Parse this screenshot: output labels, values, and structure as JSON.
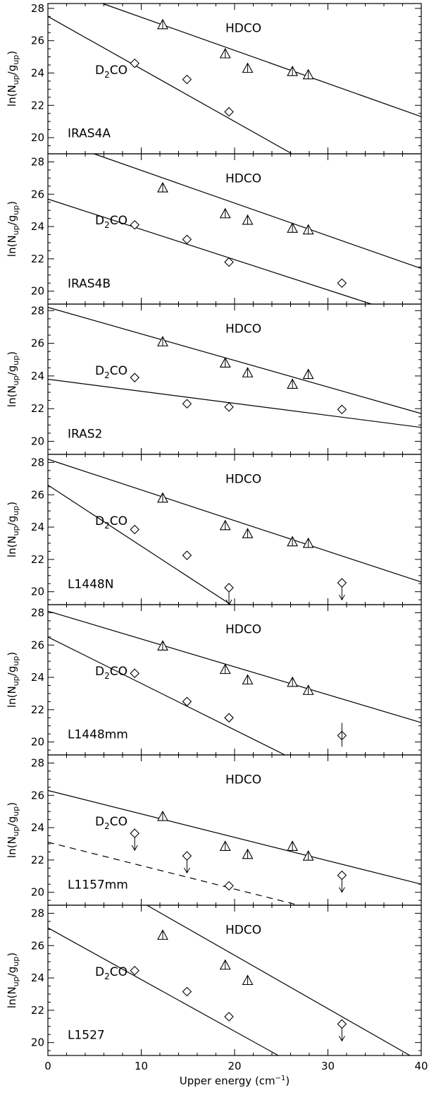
{
  "chart_data": {
    "type": "scatter",
    "xlabel": "Upper energy (cm⁻¹)",
    "ylabel": "ln(N_up/g_up)",
    "xlim": [
      0,
      40
    ],
    "xticks": [
      0,
      10,
      20,
      30,
      40
    ],
    "panels": [
      {
        "source": "IRAS4A",
        "ylim": [
          19,
          28.3
        ],
        "yticks": [
          20,
          22,
          24,
          26,
          28
        ],
        "hdco": {
          "label": "HDCO",
          "points": [
            [
              12.3,
              27.0
            ],
            [
              19.0,
              25.2
            ],
            [
              21.4,
              24.3
            ],
            [
              26.2,
              24.1
            ],
            [
              27.9,
              23.9
            ]
          ],
          "fit": [
            [
              0,
              29.5
            ],
            [
              40,
              21.3
            ]
          ],
          "fit_style": "solid"
        },
        "d2co": {
          "label": "D2CO",
          "points": [
            [
              9.3,
              24.6
            ],
            [
              14.9,
              23.6
            ],
            [
              19.4,
              21.6
            ]
          ],
          "fit": [
            [
              0,
              27.5
            ],
            [
              40,
              14.5
            ]
          ],
          "fit_style": "solid"
        },
        "upper_limits": []
      },
      {
        "source": "IRAS4B",
        "ylim": [
          19.2,
          28.5
        ],
        "yticks": [
          20,
          22,
          24,
          26,
          28
        ],
        "hdco": {
          "label": "HDCO",
          "points": [
            [
              12.3,
              26.4
            ],
            [
              19.0,
              24.8
            ],
            [
              21.4,
              24.4
            ],
            [
              26.2,
              23.9
            ],
            [
              27.9,
              23.8
            ]
          ],
          "fit": [
            [
              0,
              29.5
            ],
            [
              40,
              21.4
            ]
          ],
          "fit_style": "solid"
        },
        "d2co": {
          "label": "D2CO",
          "points": [
            [
              9.3,
              24.1
            ],
            [
              14.9,
              23.2
            ],
            [
              19.4,
              21.8
            ],
            [
              31.5,
              20.5
            ]
          ],
          "fit": [
            [
              0,
              25.7
            ],
            [
              40,
              18.2
            ]
          ],
          "fit_style": "solid"
        },
        "upper_limits": []
      },
      {
        "source": "IRAS2",
        "ylim": [
          19.2,
          28.4
        ],
        "yticks": [
          20,
          22,
          24,
          26,
          28
        ],
        "hdco": {
          "label": "HDCO",
          "points": [
            [
              12.3,
              26.1
            ],
            [
              19.0,
              24.8
            ],
            [
              21.4,
              24.2
            ],
            [
              26.2,
              23.5
            ],
            [
              27.9,
              24.1
            ]
          ],
          "fit": [
            [
              0,
              28.2
            ],
            [
              40,
              21.7
            ]
          ],
          "fit_style": "solid"
        },
        "d2co": {
          "label": "D2CO",
          "points": [
            [
              9.3,
              23.9
            ],
            [
              14.9,
              22.3
            ],
            [
              19.4,
              22.1
            ],
            [
              31.5,
              21.95
            ]
          ],
          "fit": [
            [
              0,
              23.8
            ],
            [
              40,
              20.85
            ]
          ],
          "fit_style": "solid"
        },
        "upper_limits": []
      },
      {
        "source": "L1448N",
        "ylim": [
          19.2,
          28.5
        ],
        "yticks": [
          20,
          22,
          24,
          26,
          28
        ],
        "hdco": {
          "label": "HDCO",
          "points": [
            [
              12.3,
              25.8
            ],
            [
              19.0,
              24.1
            ],
            [
              21.4,
              23.6
            ],
            [
              26.2,
              23.1
            ],
            [
              27.9,
              23.0
            ]
          ],
          "fit": [
            [
              0,
              28.2
            ],
            [
              40,
              20.6
            ]
          ],
          "fit_style": "solid"
        },
        "d2co": {
          "label": "D2CO",
          "points": [
            [
              9.3,
              23.85
            ],
            [
              14.9,
              22.25
            ]
          ],
          "fit": [
            [
              0,
              26.6
            ],
            [
              40,
              11.5
            ]
          ],
          "fit_style": "solid"
        },
        "upper_limits": [
          [
            19.4,
            20.25
          ],
          [
            31.5,
            20.55
          ]
        ]
      },
      {
        "source": "L1448mm",
        "ylim": [
          19.2,
          28.5
        ],
        "yticks": [
          20,
          22,
          24,
          26,
          28
        ],
        "hdco": {
          "label": "HDCO",
          "points": [
            [
              12.3,
              25.95
            ],
            [
              19.0,
              24.5
            ],
            [
              21.4,
              23.85
            ],
            [
              26.2,
              23.7
            ],
            [
              27.9,
              23.2
            ]
          ],
          "fit": [
            [
              0,
              28.1
            ],
            [
              40,
              21.2
            ]
          ],
          "fit_style": "solid"
        },
        "d2co": {
          "label": "D2CO",
          "points": [
            [
              9.3,
              24.25
            ],
            [
              14.9,
              22.5
            ],
            [
              19.4,
              21.5
            ],
            [
              31.5,
              20.4
            ]
          ],
          "fit": [
            [
              0,
              26.5
            ],
            [
              40,
              15.0
            ]
          ],
          "fit_style": "solid"
        },
        "upper_limits": []
      },
      {
        "source": "L1157mm",
        "ylim": [
          19.2,
          28.5
        ],
        "yticks": [
          20,
          22,
          24,
          26,
          28
        ],
        "hdco": {
          "label": "HDCO",
          "points": [
            [
              12.3,
              24.7
            ],
            [
              19.0,
              22.85
            ],
            [
              21.4,
              22.35
            ],
            [
              26.2,
              22.85
            ],
            [
              27.9,
              22.25
            ]
          ],
          "fit": [
            [
              0,
              26.3
            ],
            [
              40,
              20.5
            ]
          ],
          "fit_style": "solid"
        },
        "d2co": {
          "label": "D2CO",
          "points": [
            [
              19.4,
              20.4
            ]
          ],
          "fit": [
            [
              0,
              23.1
            ],
            [
              40,
              17.3
            ]
          ],
          "fit_style": "dashed"
        },
        "upper_limits": [
          [
            9.3,
            23.65
          ],
          [
            14.9,
            22.25
          ],
          [
            31.5,
            21.05
          ]
        ]
      },
      {
        "source": "L1527",
        "ylim": [
          19.2,
          28.5
        ],
        "yticks": [
          20,
          22,
          24,
          26,
          28
        ],
        "hdco": {
          "label": "HDCO",
          "points": [
            [
              12.3,
              26.65
            ],
            [
              19.0,
              24.8
            ],
            [
              21.4,
              23.85
            ]
          ],
          "fit": [
            [
              0,
              32.0
            ],
            [
              40,
              18.8
            ]
          ],
          "fit_style": "solid"
        },
        "d2co": {
          "label": "D2CO",
          "points": [
            [
              9.3,
              24.45
            ],
            [
              14.9,
              23.15
            ],
            [
              19.4,
              21.6
            ]
          ],
          "fit": [
            [
              0,
              27.1
            ],
            [
              40,
              14.3
            ]
          ],
          "fit_style": "solid"
        },
        "upper_limits": [
          [
            31.5,
            21.15
          ]
        ]
      }
    ]
  }
}
